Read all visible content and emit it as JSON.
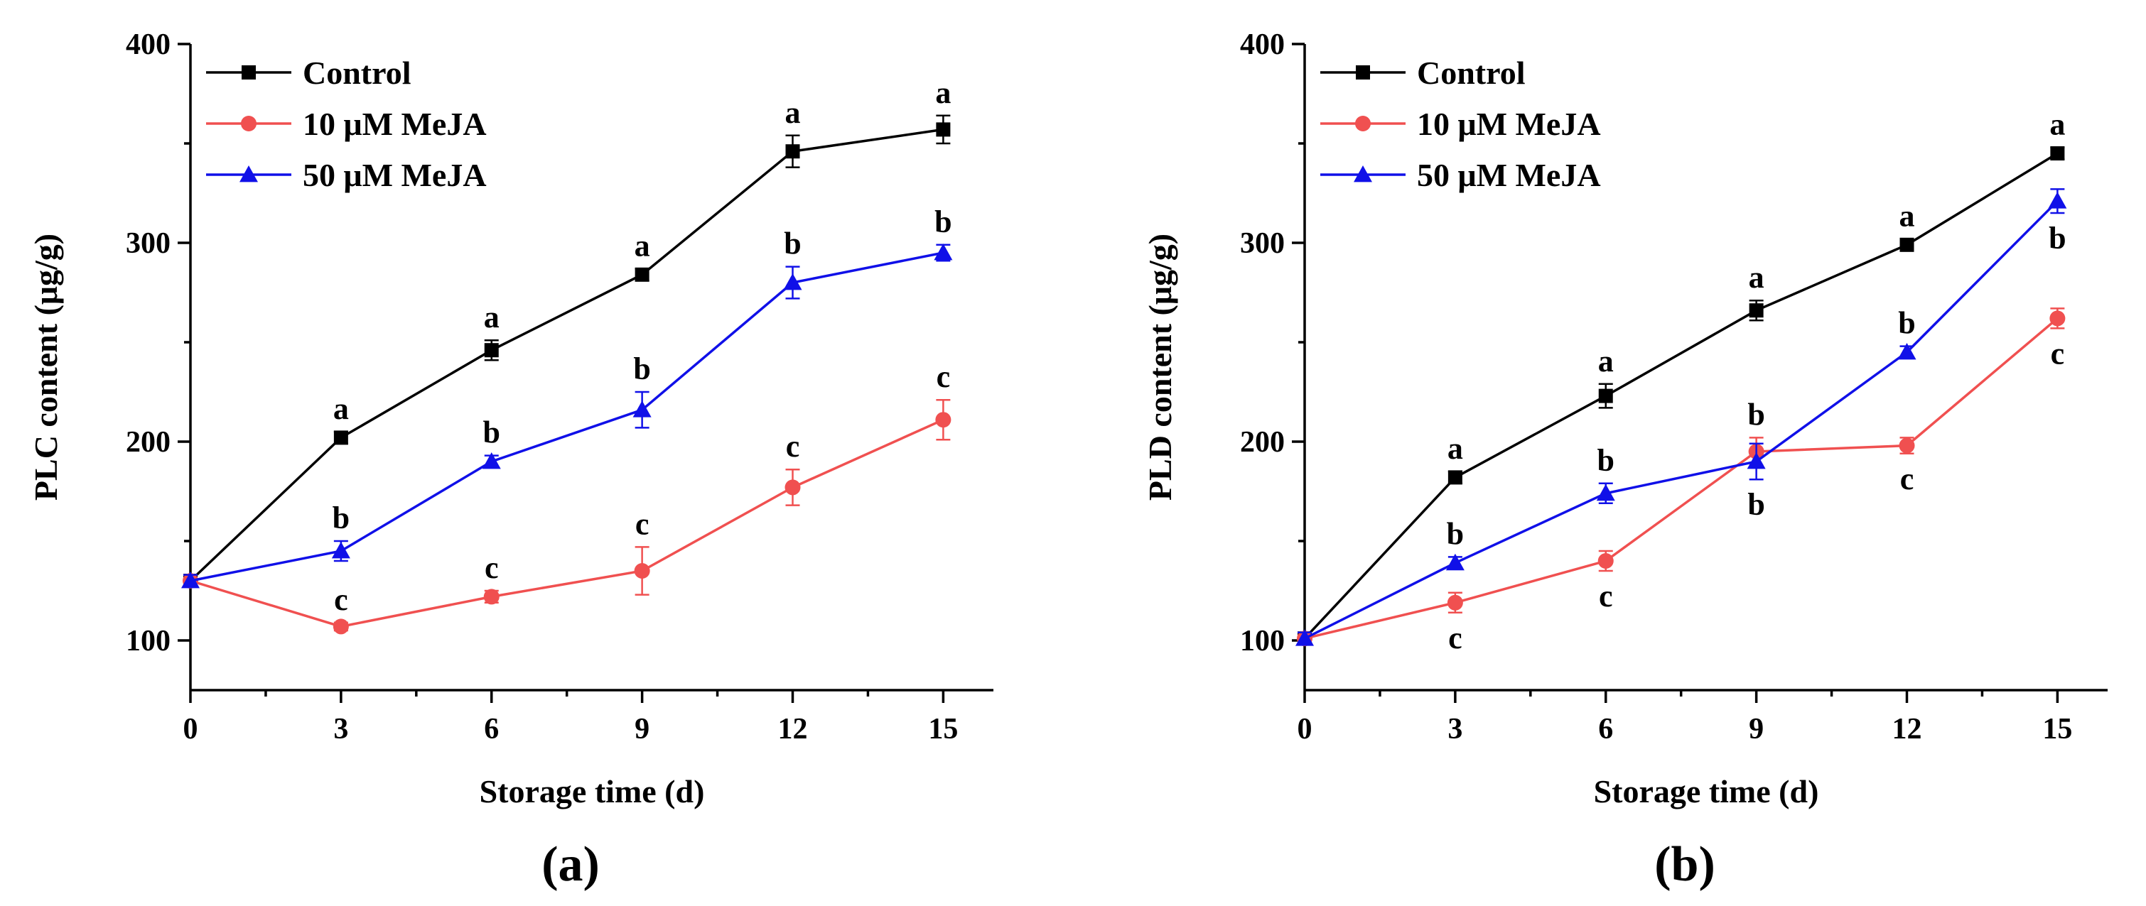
{
  "chart_data": [
    {
      "type": "line",
      "panel_label": "(a)",
      "xlabel": "Storage time (d)",
      "ylabel": "PLC content (μg/g)",
      "x": [
        0,
        3,
        6,
        9,
        12,
        15
      ],
      "x_ticks": [
        "0",
        "3",
        "6",
        "9",
        "12",
        "15"
      ],
      "xlim": [
        0,
        16
      ],
      "y_ticks": [
        "100",
        "200",
        "300",
        "400"
      ],
      "ylim": [
        75,
        400
      ],
      "legend_position": "top-left",
      "series": [
        {
          "name": "Control",
          "color": "#000000",
          "marker": "square",
          "values": [
            130,
            202,
            246,
            284,
            346,
            357
          ],
          "errors": [
            3,
            3,
            5,
            3,
            8,
            7
          ],
          "letters": [
            "",
            "a",
            "a",
            "a",
            "a",
            "a"
          ]
        },
        {
          "name": "10 μM MeJA",
          "color": "#f05050",
          "marker": "circle",
          "values": [
            130,
            107,
            122,
            135,
            177,
            211
          ],
          "errors": [
            3,
            2,
            3,
            12,
            9,
            10
          ],
          "letters": [
            "",
            "c",
            "c",
            "c",
            "c",
            "c"
          ]
        },
        {
          "name": "50 μM MeJA",
          "color": "#1010e8",
          "marker": "triangle",
          "values": [
            130,
            145,
            190,
            216,
            280,
            295
          ],
          "errors": [
            3,
            5,
            3,
            9,
            8,
            4
          ],
          "letters": [
            "",
            "b",
            "b",
            "b",
            "b",
            "b"
          ]
        }
      ]
    },
    {
      "type": "line",
      "panel_label": "(b)",
      "xlabel": "Storage time (d)",
      "ylabel": "PLD content (μg/g)",
      "x": [
        0,
        3,
        6,
        9,
        12,
        15
      ],
      "x_ticks": [
        "0",
        "3",
        "6",
        "9",
        "12",
        "15"
      ],
      "xlim": [
        0,
        16
      ],
      "y_ticks": [
        "100",
        "200",
        "300",
        "400"
      ],
      "ylim": [
        75,
        400
      ],
      "legend_position": "top-left",
      "series": [
        {
          "name": "Control",
          "color": "#000000",
          "marker": "square",
          "values": [
            101,
            182,
            223,
            266,
            299,
            345
          ],
          "errors": [
            3,
            3,
            6,
            5,
            3,
            3
          ],
          "letters": [
            "",
            "a",
            "a",
            "a",
            "a",
            "a"
          ]
        },
        {
          "name": "10 μM MeJA",
          "color": "#f05050",
          "marker": "circle",
          "values": [
            101,
            119,
            140,
            195,
            198,
            262
          ],
          "errors": [
            3,
            5,
            5,
            7,
            4,
            5
          ],
          "letters": [
            "",
            "c",
            "c",
            "b",
            "c",
            "c"
          ]
        },
        {
          "name": "50 μM MeJA",
          "color": "#1010e8",
          "marker": "triangle",
          "values": [
            101,
            139,
            174,
            190,
            245,
            321
          ],
          "errors": [
            3,
            3,
            5,
            9,
            3,
            6
          ],
          "letters": [
            "",
            "b",
            "b",
            "b",
            "b",
            "b"
          ]
        }
      ]
    }
  ]
}
